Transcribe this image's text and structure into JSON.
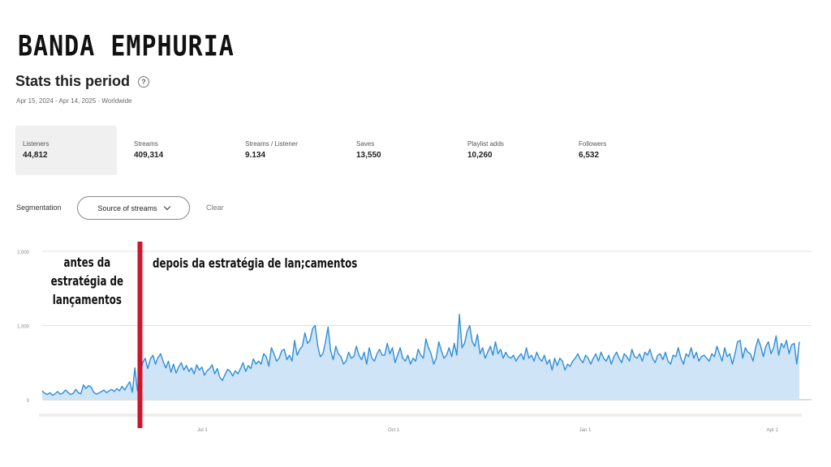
{
  "header": {
    "band_name": "BANDA EMPHURIA",
    "title": "Stats this period",
    "help_icon": "question-circle-icon",
    "period": "Apr 15, 2024 - Apr 14, 2025 · Worldwide"
  },
  "metrics": [
    {
      "label": "Listeners",
      "value": "44,812",
      "selected": true
    },
    {
      "label": "Streams",
      "value": "409,314"
    },
    {
      "label": "Streams / Listener",
      "value": "9.134"
    },
    {
      "label": "Saves",
      "value": "13,550"
    },
    {
      "label": "Playlist adds",
      "value": "10,260"
    },
    {
      "label": "Followers",
      "value": "6,532"
    }
  ],
  "segmentation": {
    "label": "Segmentation",
    "selected": "Source of streams",
    "clear": "Clear"
  },
  "annotations": {
    "before_line1": "antes da",
    "before_line2": "estratégia de",
    "before_line3": "lançamentos",
    "after": "depois da estratégia de lan;camentos",
    "marker_color": "#d0142c"
  },
  "chart_data": {
    "type": "area",
    "x_start": "2024-04-15",
    "x_end": "2025-04-14",
    "xticks": [
      "Jul 1",
      "Oct 1",
      "Jan 1",
      "Apr 1"
    ],
    "yticks": [
      "0",
      "1,000",
      "2,000"
    ],
    "ylim": [
      0,
      2000
    ],
    "marker_date": "2024-06-01",
    "color": "#2f8ed8",
    "fill": "#cfe4f7",
    "values": [
      120,
      85,
      70,
      95,
      60,
      80,
      110,
      75,
      90,
      130,
      100,
      70,
      85,
      140,
      95,
      80,
      200,
      150,
      190,
      170,
      100,
      75,
      90,
      110,
      130,
      95,
      120,
      140,
      110,
      150,
      120,
      180,
      130,
      190,
      240,
      100,
      430,
      120,
      330,
      500,
      560,
      420,
      550,
      600,
      480,
      570,
      620,
      510,
      430,
      520,
      370,
      480,
      360,
      440,
      500,
      400,
      460,
      380,
      430,
      350,
      470,
      400,
      440,
      330,
      390,
      420,
      470,
      350,
      420,
      300,
      260,
      340,
      410,
      380,
      320,
      390,
      350,
      420,
      500,
      380,
      460,
      420,
      550,
      480,
      520,
      480,
      620,
      580,
      450,
      700,
      620,
      520,
      560,
      660,
      680,
      540,
      600,
      520,
      800,
      600,
      680,
      720,
      900,
      760,
      800,
      960,
      1000,
      720,
      580,
      620,
      780,
      980,
      660,
      540,
      720,
      620,
      580,
      480,
      520,
      640,
      560,
      580,
      720,
      600,
      540,
      640,
      480,
      700,
      560,
      520,
      620,
      680,
      600,
      600,
      760,
      620,
      700,
      500,
      600,
      700,
      560,
      520,
      600,
      480,
      560,
      520,
      680,
      600,
      560,
      820,
      700,
      620,
      480,
      560,
      780,
      660,
      560,
      600,
      700,
      580,
      760,
      600,
      1150,
      700,
      760,
      920,
      1000,
      780,
      720,
      880,
      620,
      700,
      560,
      640,
      720,
      600,
      780,
      620,
      680,
      560,
      640,
      580,
      560,
      600,
      520,
      580,
      620,
      540,
      700,
      560,
      600,
      520,
      640,
      560,
      520,
      600,
      480,
      540,
      400,
      560,
      460,
      560,
      520,
      400,
      480,
      450,
      520,
      560,
      620,
      540,
      500,
      600,
      560,
      480,
      560,
      620,
      520,
      640,
      560,
      520,
      600,
      480,
      580,
      640,
      560,
      500,
      620,
      580,
      520,
      680,
      580,
      560,
      620,
      520,
      640,
      600,
      680,
      560,
      500,
      600,
      620,
      540,
      640,
      520,
      480,
      600,
      580,
      700,
      560,
      480,
      620,
      580,
      700,
      560,
      640,
      520,
      580,
      600,
      560,
      520,
      620,
      580,
      720,
      620,
      520,
      700,
      580,
      620,
      480,
      620,
      780,
      800,
      560,
      700,
      640,
      620,
      520,
      700,
      820,
      720,
      580,
      720,
      780,
      620,
      700,
      860,
      600,
      760,
      700,
      800,
      620,
      740,
      760,
      480,
      780
    ]
  }
}
